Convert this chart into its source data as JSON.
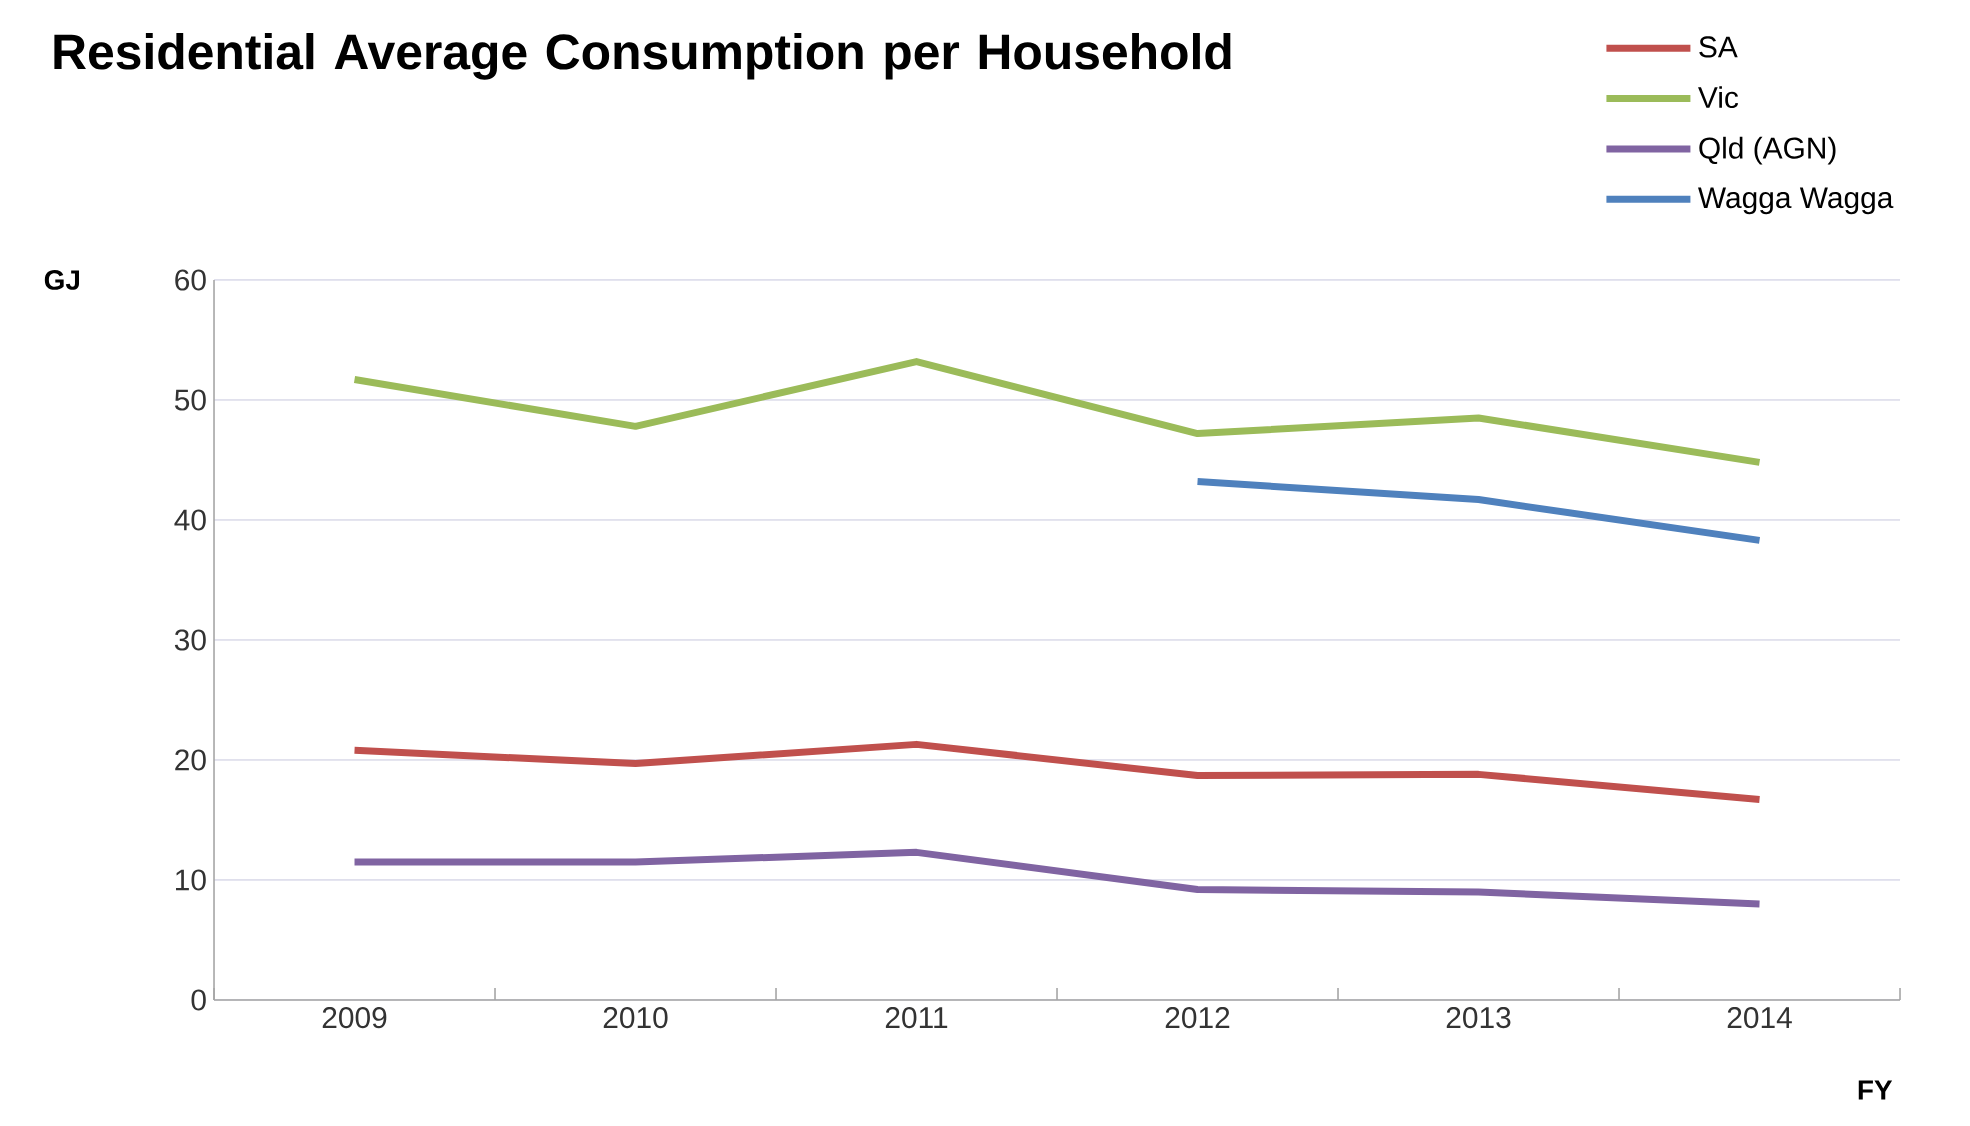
{
  "chart_data": {
    "type": "line",
    "title": "Residential Average Consumption per Household",
    "xlabel": "FY",
    "ylabel": "GJ",
    "categories": [
      "2009",
      "2010",
      "2011",
      "2012",
      "2013",
      "2014"
    ],
    "series": [
      {
        "name": "SA",
        "color": "#c0504d",
        "values": [
          20.8,
          19.7,
          21.3,
          18.7,
          18.8,
          16.7
        ]
      },
      {
        "name": "Vic",
        "color": "#9bbb59",
        "values": [
          51.7,
          47.8,
          53.2,
          47.2,
          48.5,
          44.8
        ]
      },
      {
        "name": "Qld (AGN)",
        "color": "#8064a2",
        "values": [
          11.5,
          11.5,
          12.3,
          9.2,
          9.0,
          8.0
        ]
      },
      {
        "name": "Wagga Wagga",
        "color": "#4f81bd",
        "values": [
          null,
          null,
          null,
          43.2,
          41.7,
          38.3
        ]
      }
    ],
    "ylim": [
      0,
      60
    ],
    "yticks": [
      0,
      10,
      20,
      30,
      40,
      50,
      60
    ],
    "grid": "y",
    "legend": "top right",
    "line_style": "solid"
  }
}
